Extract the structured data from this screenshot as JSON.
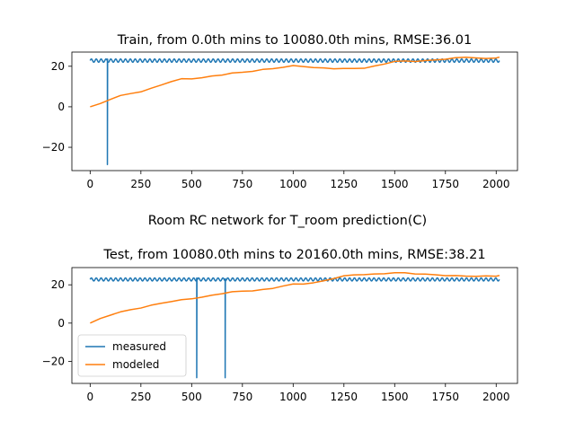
{
  "suptitle": "Room RC network for T_room prediction(C)",
  "colors": {
    "measured": "#1f77b4",
    "modeled": "#ff7f0e"
  },
  "chart_data": [
    {
      "type": "line",
      "title": "Train, from 0.0th mins to 10080.0th mins, RMSE:36.01",
      "xlim": [
        -90,
        2105
      ],
      "ylim": [
        -31.5,
        27
      ],
      "xticks": [
        0,
        250,
        500,
        750,
        1000,
        1250,
        1500,
        1750,
        2000
      ],
      "yticks": [
        -20,
        0,
        20
      ],
      "series": [
        {
          "name": "measured",
          "base_x": [
            0,
            2016
          ],
          "base_value": 22.8,
          "oscillation": {
            "amplitude": 0.8,
            "period": 24
          },
          "spikes": [
            {
              "x": 85,
              "min": -28.5,
              "max": 23.5
            }
          ]
        },
        {
          "name": "modeled",
          "x": [
            0,
            50,
            100,
            150,
            200,
            250,
            300,
            350,
            400,
            450,
            500,
            550,
            600,
            650,
            700,
            750,
            800,
            850,
            900,
            950,
            1000,
            1050,
            1100,
            1150,
            1200,
            1250,
            1300,
            1350,
            1400,
            1450,
            1500,
            1550,
            1600,
            1650,
            1700,
            1750,
            1800,
            1850,
            1900,
            1950,
            2000,
            2016
          ],
          "values": [
            0,
            1.5,
            3.8,
            5.5,
            6.5,
            7.5,
            9,
            10.8,
            12.5,
            13.7,
            13.9,
            14.3,
            15.1,
            15.8,
            16.6,
            17,
            17.6,
            18.3,
            18.9,
            19.5,
            20.2,
            20.0,
            19.3,
            19.1,
            18.9,
            18.8,
            18.9,
            19.1,
            20.0,
            21.2,
            22.4,
            22.5,
            22.5,
            22.7,
            23.1,
            23.6,
            24.1,
            24.5,
            24.2,
            23.7,
            24.2,
            24.5
          ]
        }
      ]
    },
    {
      "type": "line",
      "title": "Test, from 10080.0th mins to 20160.0th mins, RMSE:38.21",
      "xlim": [
        -90,
        2105
      ],
      "ylim": [
        -31.5,
        29
      ],
      "xticks": [
        0,
        250,
        500,
        750,
        1000,
        1250,
        1500,
        1750,
        2000
      ],
      "yticks": [
        -20,
        0,
        20
      ],
      "series": [
        {
          "name": "measured",
          "base_x": [
            0,
            2016
          ],
          "base_value": 22.8,
          "oscillation": {
            "amplitude": 0.8,
            "period": 24
          },
          "spikes": [
            {
              "x": 525,
              "min": -28.5,
              "max": 23.5
            },
            {
              "x": 665,
              "min": -28.5,
              "max": 23
            }
          ]
        },
        {
          "name": "modeled",
          "x": [
            0,
            50,
            100,
            150,
            200,
            250,
            300,
            350,
            400,
            450,
            500,
            550,
            600,
            650,
            700,
            750,
            800,
            850,
            900,
            950,
            1000,
            1050,
            1100,
            1150,
            1200,
            1250,
            1300,
            1350,
            1400,
            1450,
            1500,
            1550,
            1600,
            1650,
            1700,
            1750,
            1800,
            1850,
            1900,
            1950,
            2000,
            2016
          ],
          "values": [
            0,
            2.3,
            4.3,
            5.8,
            7,
            8,
            9.2,
            10.4,
            11.3,
            12.1,
            12.8,
            13.5,
            14.5,
            15.5,
            16.3,
            16.7,
            16.9,
            17.4,
            18.2,
            19.4,
            20.3,
            20.5,
            21.0,
            22.0,
            23.4,
            24.6,
            25.2,
            25.4,
            25.5,
            25.9,
            26.3,
            26.2,
            25.8,
            25.5,
            25.2,
            24.9,
            24.7,
            24.6,
            24.5,
            24.5,
            24.6,
            24.9
          ]
        }
      ]
    }
  ],
  "legend": {
    "placement": "lower-left",
    "entries": [
      "measured",
      "modeled"
    ]
  }
}
